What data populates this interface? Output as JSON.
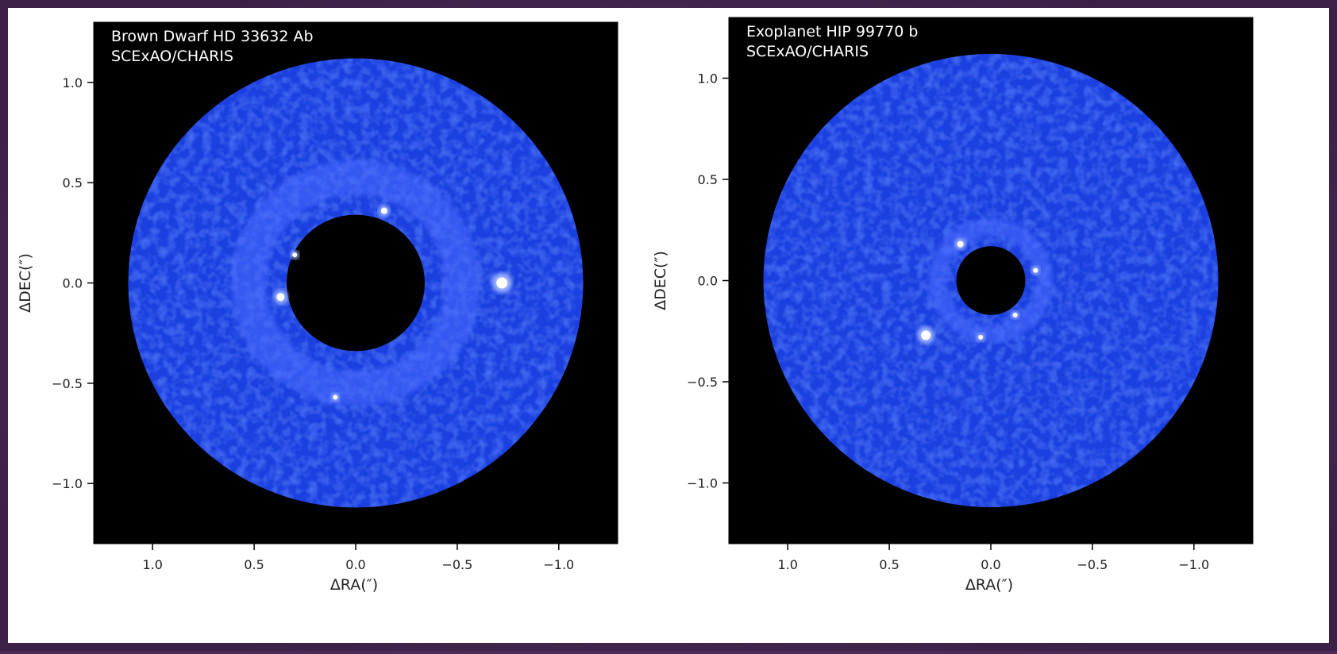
{
  "chart_data": [
    {
      "type": "image",
      "annotations": [
        "Brown Dwarf HD 33632 Ab",
        "SCExAO/CHARIS"
      ],
      "xlabel": "ΔRA(″)",
      "ylabel": "ΔDEC(″)",
      "xlim": [
        1.29,
        -1.29
      ],
      "ylim": [
        -1.3,
        1.3
      ],
      "xticks": [
        {
          "value": 1,
          "label": "1.0"
        },
        0.5,
        {
          "value": 0,
          "label": "0.0"
        },
        {
          "value": -0.5,
          "label": "−0.5"
        },
        {
          "value": -1,
          "label": "−1.0"
        }
      ],
      "yticks": [
        {
          "value": 1,
          "label": "1.0"
        },
        0.5,
        {
          "value": 0,
          "label": "0.0"
        },
        {
          "value": -0.5,
          "label": "−0.5"
        },
        {
          "value": -1,
          "label": "−1.0"
        }
      ]
    },
    {
      "type": "image",
      "annotations": [
        "Exoplanet HIP 99770 b",
        "SCExAO/CHARIS"
      ],
      "xlabel": "ΔRA(″)",
      "ylabel": "ΔDEC(″)",
      "xlim": [
        1.29,
        -1.29
      ],
      "ylim": [
        -1.3,
        1.3
      ],
      "xticks": [
        {
          "value": 1,
          "label": "1.0"
        },
        0.5,
        {
          "value": 0,
          "label": "0.0"
        },
        {
          "value": -0.5,
          "label": "−0.5"
        },
        {
          "value": -1,
          "label": "−1.0"
        }
      ],
      "yticks": [
        {
          "value": 1,
          "label": "1.0"
        },
        0.5,
        {
          "value": 0,
          "label": "0.0"
        },
        {
          "value": -0.5,
          "label": "−0.5"
        },
        {
          "value": -1,
          "label": "−1.0"
        }
      ]
    }
  ]
}
